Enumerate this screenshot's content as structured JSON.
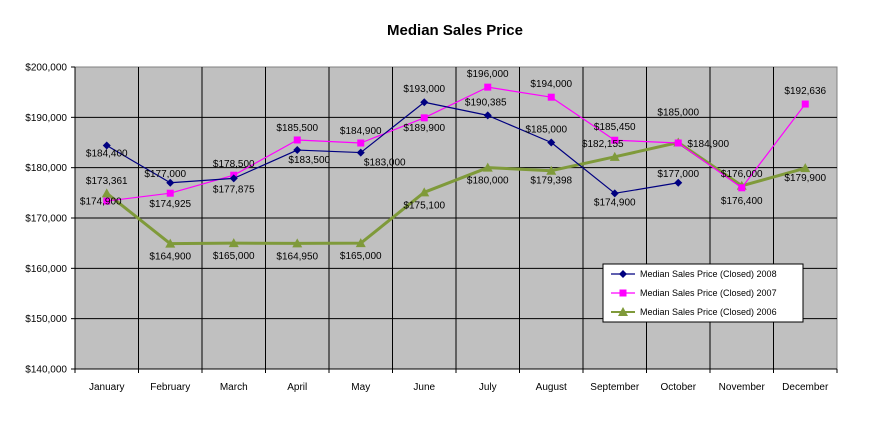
{
  "chart_data": {
    "type": "line",
    "title": "Median Sales Price",
    "xlabel": "",
    "ylabel": "",
    "ylim": [
      140000,
      200000
    ],
    "yticks": [
      140000,
      150000,
      160000,
      170000,
      180000,
      190000,
      200000
    ],
    "ytick_labels": [
      "$140,000",
      "$150,000",
      "$160,000",
      "$170,000",
      "$180,000",
      "$190,000",
      "$200,000"
    ],
    "grid": true,
    "legend_position": "bottom-right",
    "categories": [
      "January",
      "February",
      "March",
      "April",
      "May",
      "June",
      "July",
      "August",
      "September",
      "October",
      "November",
      "December"
    ],
    "series": [
      {
        "name": "Median Sales Price (Closed) 2008",
        "color": "#000080",
        "marker": "diamond",
        "values": [
          184400,
          177000,
          177875,
          183500,
          183000,
          193000,
          190385,
          185000,
          174900,
          177000,
          null,
          null
        ],
        "labels": [
          "$184,400",
          "$177,000",
          "$177,875",
          "$183,500",
          "$183,000",
          "$193,000",
          "$190,385",
          "$185,000",
          "$174,900",
          "$177,000",
          null,
          null
        ]
      },
      {
        "name": "Median Sales Price (Closed) 2007",
        "color": "#ff00ff",
        "marker": "square",
        "values": [
          173361,
          174925,
          178500,
          185500,
          184900,
          189900,
          196000,
          194000,
          185450,
          184900,
          176000,
          192636
        ],
        "labels": [
          "$173,361",
          "$174,925",
          "$178,500",
          "$185,500",
          "$184,900",
          "$189,900",
          "$196,000",
          "$194,000",
          "$185,450",
          "$184,900",
          "$176,000",
          "$192,636"
        ]
      },
      {
        "name": "Median Sales Price (Closed) 2006",
        "color": "#7f9a3a",
        "marker": "triangle",
        "values": [
          174900,
          164900,
          165000,
          164950,
          165000,
          175100,
          180000,
          179398,
          182155,
          185000,
          176400,
          179900
        ],
        "labels": [
          "$174,900",
          "$164,900",
          "$165,000",
          "$164,950",
          "$165,000",
          "$175,100",
          "$180,000",
          "$179,398",
          "$182,155",
          "$185,000",
          "$176,400",
          "$179,900"
        ]
      }
    ]
  }
}
